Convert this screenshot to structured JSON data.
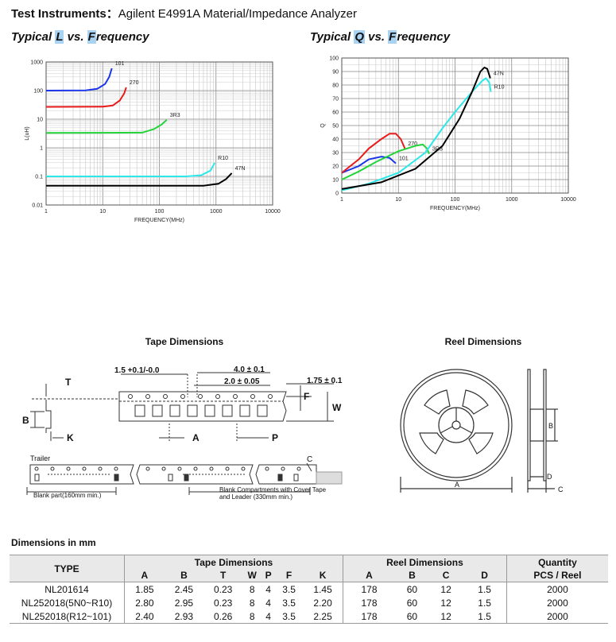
{
  "header": {
    "label": "Test Instruments：",
    "value": "Agilent E4991A Material/Impedance Analyzer"
  },
  "chart_titles": {
    "l": {
      "p1": "Typical ",
      "h1": "L",
      "p2": " vs. ",
      "h2": "F",
      "p3": "requency"
    },
    "q": {
      "p1": "Typical ",
      "h1": "Q",
      "p2": " vs. ",
      "h2": "F",
      "p3": "requency"
    }
  },
  "chart_data": [
    {
      "type": "line",
      "title": "Typical L vs. Frequency",
      "xlabel": "FREQUENCY(MHz)",
      "ylabel": "L(uH)",
      "xscale": "log",
      "yscale": "log",
      "xlim": [
        1,
        10000
      ],
      "ylim": [
        0.01,
        1000
      ],
      "grid": true,
      "xticks": [
        "1",
        "10",
        "100",
        "1000",
        "10000"
      ],
      "yticks": [
        "0.01",
        "0.1",
        "1",
        "10",
        "100",
        "1000"
      ],
      "series": [
        {
          "name": "101",
          "color": "#1a36e8",
          "points": [
            [
              1,
              100
            ],
            [
              5,
              102
            ],
            [
              8,
              115
            ],
            [
              11,
              170
            ],
            [
              13,
              300
            ],
            [
              14.5,
              600
            ]
          ]
        },
        {
          "name": "270",
          "color": "#e81a1a",
          "points": [
            [
              1,
              27
            ],
            [
              10,
              27.5
            ],
            [
              15,
              30
            ],
            [
              20,
              45
            ],
            [
              24,
              80
            ],
            [
              26,
              130
            ]
          ]
        },
        {
          "name": "3R3",
          "color": "#22d43a",
          "points": [
            [
              1,
              3.3
            ],
            [
              50,
              3.4
            ],
            [
              80,
              4.5
            ],
            [
              110,
              6.5
            ],
            [
              135,
              9.5
            ]
          ]
        },
        {
          "name": "R10",
          "color": "#2de8e8",
          "points": [
            [
              1,
              0.1
            ],
            [
              300,
              0.1
            ],
            [
              550,
              0.11
            ],
            [
              800,
              0.16
            ],
            [
              950,
              0.3
            ]
          ]
        },
        {
          "name": "47N",
          "color": "#000000",
          "points": [
            [
              1,
              0.047
            ],
            [
              600,
              0.047
            ],
            [
              1100,
              0.055
            ],
            [
              1500,
              0.08
            ],
            [
              1900,
              0.13
            ]
          ]
        }
      ]
    },
    {
      "type": "line",
      "title": "Typical Q vs. Frequency",
      "xlabel": "FREQUENCY(MHz)",
      "ylabel": "Q",
      "xscale": "log",
      "xlim": [
        1,
        10000
      ],
      "ylim": [
        0,
        100
      ],
      "grid": true,
      "xticks": [
        "1",
        "10",
        "100",
        "1000",
        "10000"
      ],
      "yticks": [
        "0",
        "10",
        "20",
        "30",
        "40",
        "50",
        "60",
        "70",
        "80",
        "90",
        "100"
      ],
      "series": [
        {
          "name": "101",
          "color": "#1a36e8",
          "points": [
            [
              1,
              15
            ],
            [
              2,
              20
            ],
            [
              3,
              25
            ],
            [
              5,
              27
            ],
            [
              7,
              26
            ],
            [
              9,
              22
            ]
          ]
        },
        {
          "name": "270",
          "color": "#e81a1a",
          "points": [
            [
              1,
              15
            ],
            [
              2,
              25
            ],
            [
              3,
              33
            ],
            [
              5,
              40
            ],
            [
              7,
              44
            ],
            [
              9,
              44
            ],
            [
              11,
              40
            ],
            [
              13,
              33
            ]
          ]
        },
        {
          "name": "3R3",
          "color": "#22d43a",
          "points": [
            [
              1,
              10
            ],
            [
              2,
              16
            ],
            [
              4,
              23
            ],
            [
              10,
              31
            ],
            [
              20,
              35
            ],
            [
              27,
              36
            ],
            [
              32,
              33
            ],
            [
              35,
              29
            ]
          ]
        },
        {
          "name": "R10",
          "color": "#2de8e8",
          "points": [
            [
              1,
              2
            ],
            [
              3,
              7
            ],
            [
              10,
              15
            ],
            [
              30,
              30
            ],
            [
              60,
              48
            ],
            [
              100,
              60
            ],
            [
              200,
              75
            ],
            [
              300,
              83
            ],
            [
              350,
              85
            ],
            [
              400,
              82
            ],
            [
              430,
              75
            ]
          ]
        },
        {
          "name": "47N",
          "color": "#000000",
          "points": [
            [
              1,
              3
            ],
            [
              5,
              8
            ],
            [
              20,
              18
            ],
            [
              60,
              35
            ],
            [
              120,
              55
            ],
            [
              200,
              75
            ],
            [
              280,
              90
            ],
            [
              330,
              93
            ],
            [
              370,
              92
            ],
            [
              420,
              85
            ]
          ]
        }
      ]
    }
  ],
  "tape": {
    "title": "Tape Dimensions",
    "dim_pitch_hole": "1.5 +0.1/-0.0",
    "dim_p0": "4.0 ± 0.1",
    "dim_p2": "2.0 ± 0.05",
    "dim_e": "1.75 ± 0.1",
    "lbl_t": "T",
    "lbl_b": "B",
    "lbl_k": "K",
    "lbl_a": "A",
    "lbl_p": "P",
    "lbl_f": "F",
    "lbl_w": "W",
    "trailer": "Trailer",
    "lbl_c": "C",
    "blank_part": "Blank part(160mm min.)",
    "blank_comp_1": "Blank Compartments with Cover Tape",
    "blank_comp_2": "and Leader (330mm min.)"
  },
  "reel": {
    "title": "Reel Dimensions",
    "lbl_a": "A",
    "lbl_b": "B",
    "lbl_c": "C",
    "lbl_d": "D"
  },
  "dimensions": {
    "title": "Dimensions in mm",
    "h_type": "TYPE",
    "h_tape": "Tape Dimensions",
    "h_reel": "Reel Dimensions",
    "h_qty": "Quantity",
    "h_pcs": "PCS / Reel",
    "tape_cols": [
      "A",
      "B",
      "T",
      "W",
      "P",
      "F",
      "K"
    ],
    "reel_cols": [
      "A",
      "B",
      "C",
      "D"
    ],
    "rows": [
      [
        "NL201614",
        "1.85",
        "2.45",
        "0.23",
        "8",
        "4",
        "3.5",
        "1.45",
        "178",
        "60",
        "12",
        "1.5",
        "2000"
      ],
      [
        "NL252018(5N0~R10)",
        "2.80",
        "2.95",
        "0.23",
        "8",
        "4",
        "3.5",
        "2.20",
        "178",
        "60",
        "12",
        "1.5",
        "2000"
      ],
      [
        "NL252018(R12~101)",
        "2.40",
        "2.93",
        "0.26",
        "8",
        "4",
        "3.5",
        "2.25",
        "178",
        "60",
        "12",
        "1.5",
        "2000"
      ]
    ]
  }
}
